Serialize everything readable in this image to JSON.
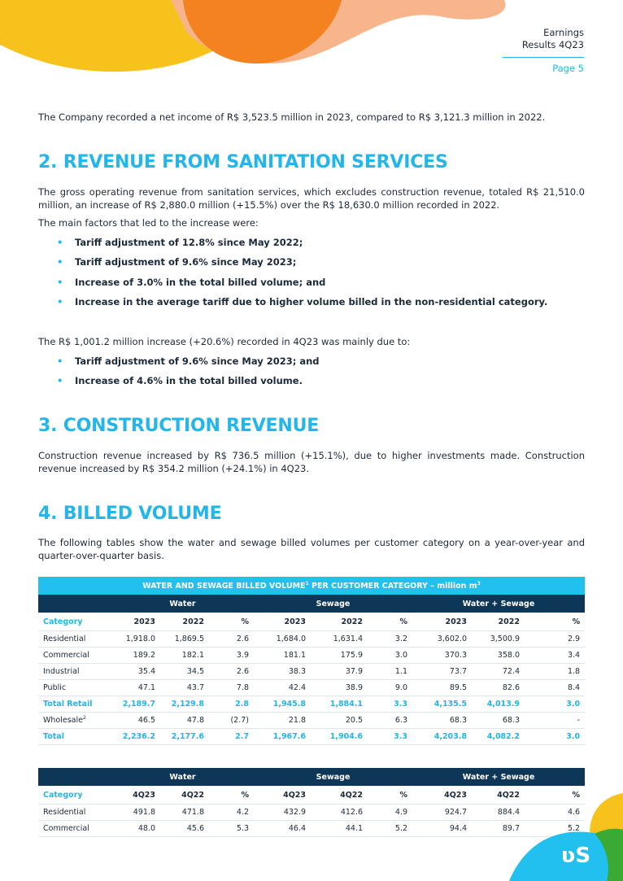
{
  "header": {
    "line1": "Earnings",
    "line2": "Results 4Q23",
    "page": "Page 5"
  },
  "intro": "The Company recorded a net income of R$ 3,523.5 million in 2023, compared to R$ 3,121.3 million in 2022.",
  "section2": {
    "heading": "2. REVENUE FROM SANITATION SERVICES",
    "para1": "The gross operating revenue from sanitation services, which excludes construction revenue, totaled R$ 21,510.0 million, an increase of R$ 2,880.0 million (+15.5%) over the R$ 18,630.0 million recorded in 2022.",
    "para2": "The main factors that led to the increase were:",
    "bullets1": [
      "Tariff adjustment of 12.8% since May 2022;",
      "Tariff adjustment of 9.6% since May 2023;",
      "Increase of 3.0% in the total billed volume; and",
      "Increase in the average tariff due to higher volume billed in the non-residential category."
    ],
    "para3": "The R$ 1,001.2 million increase (+20.6%) recorded in 4Q23 was mainly due to:",
    "bullets2": [
      "Tariff adjustment of 9.6% since May 2023; and",
      "Increase of 4.6% in the total billed volume."
    ]
  },
  "section3": {
    "heading": "3. CONSTRUCTION REVENUE",
    "para1": "Construction revenue increased by R$ 736.5 million (+15.1%), due to higher investments made. Construction revenue increased by R$ 354.2 million (+24.1%) in 4Q23."
  },
  "section4": {
    "heading": "4. BILLED VOLUME",
    "para1": "The following tables show the water and sewage billed volumes per customer category on a year-over-year and quarter-over-quarter basis."
  },
  "table1": {
    "title": {
      "part1": "WATER AND SEWAGE BILLED VOLUME",
      "note1": "1",
      "part2": " PER CUSTOMER CATEGORY – million m",
      "note2": "3"
    },
    "groups": [
      "Water",
      "Sewage",
      "Water + Sewage"
    ],
    "columns": [
      "Category",
      "2023",
      "2022",
      "%",
      "2023",
      "2022",
      "%",
      "2023",
      "2022",
      "%"
    ],
    "rows": [
      {
        "label": "Residential",
        "values": [
          "1,918.0",
          "1,869.5",
          "2.6",
          "1,684.0",
          "1,631.4",
          "3.2",
          "3,602.0",
          "3,500.9",
          "2.9"
        ]
      },
      {
        "label": "Commercial",
        "values": [
          "189.2",
          "182.1",
          "3.9",
          "181.1",
          "175.9",
          "3.0",
          "370.3",
          "358.0",
          "3.4"
        ]
      },
      {
        "label": "Industrial",
        "values": [
          "35.4",
          "34.5",
          "2.6",
          "38.3",
          "37.9",
          "1.1",
          "73.7",
          "72.4",
          "1.8"
        ]
      },
      {
        "label": "Public",
        "values": [
          "47.1",
          "43.7",
          "7.8",
          "42.4",
          "38.9",
          "9.0",
          "89.5",
          "82.6",
          "8.4"
        ]
      },
      {
        "label": "Total Retail",
        "highlight": true,
        "values": [
          "2,189.7",
          "2,129.8",
          "2.8",
          "1,945.8",
          "1,884.1",
          "3.3",
          "4,135.5",
          "4,013.9",
          "3.0"
        ]
      },
      {
        "label": "Wholesale",
        "note": "2",
        "values": [
          "46.5",
          "47.8",
          "(2.7)",
          "21.8",
          "20.5",
          "6.3",
          "68.3",
          "68.3",
          "-"
        ]
      },
      {
        "label": "Total",
        "highlight": true,
        "values": [
          "2,236.2",
          "2,177.6",
          "2.7",
          "1,967.6",
          "1,904.6",
          "3.3",
          "4,203.8",
          "4,082.2",
          "3.0"
        ]
      }
    ]
  },
  "table2": {
    "groups": [
      "Water",
      "Sewage",
      "Water + Sewage"
    ],
    "columns": [
      "Category",
      "4Q23",
      "4Q22",
      "%",
      "4Q23",
      "4Q22",
      "%",
      "4Q23",
      "4Q22",
      "%"
    ],
    "rows": [
      {
        "label": "Residential",
        "values": [
          "491.8",
          "471.8",
          "4.2",
          "432.9",
          "412.6",
          "4.9",
          "924.7",
          "884.4",
          "4.6"
        ]
      },
      {
        "label": "Commercial",
        "values": [
          "48.0",
          "45.6",
          "5.3",
          "46.4",
          "44.1",
          "5.2",
          "94.4",
          "89.7",
          "5.2"
        ]
      }
    ]
  }
}
